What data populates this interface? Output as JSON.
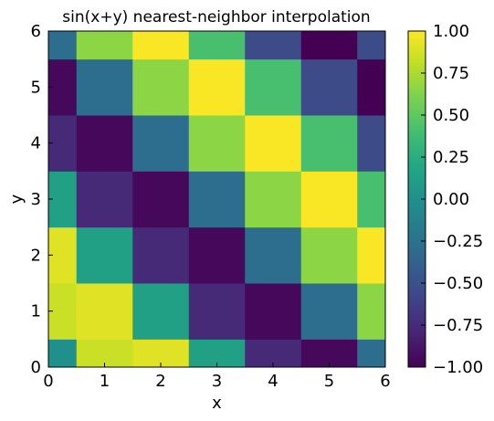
{
  "chart_data": {
    "type": "heatmap",
    "title": "sin(x+y) nearest-neighbor interpolation",
    "xlabel": "x",
    "ylabel": "y",
    "xlim": [
      0,
      6
    ],
    "ylim": [
      0,
      6
    ],
    "x_centers": [
      0,
      1,
      2,
      3,
      4,
      5,
      6
    ],
    "y_centers": [
      0,
      1,
      2,
      3,
      4,
      5,
      6
    ],
    "x_ticks": [
      "0",
      "1",
      "2",
      "3",
      "4",
      "5",
      "6"
    ],
    "y_ticks": [
      "0",
      "1",
      "2",
      "3",
      "4",
      "5",
      "6"
    ],
    "values": [
      [
        0.0,
        0.841,
        0.909,
        0.141,
        -0.757,
        -0.959,
        -0.279
      ],
      [
        0.841,
        0.909,
        0.141,
        -0.757,
        -0.959,
        -0.279,
        0.657
      ],
      [
        0.909,
        0.141,
        -0.757,
        -0.959,
        -0.279,
        0.657,
        0.989
      ],
      [
        0.141,
        -0.757,
        -0.959,
        -0.279,
        0.657,
        0.989,
        0.412
      ],
      [
        -0.757,
        -0.959,
        -0.279,
        0.657,
        0.989,
        0.412,
        -0.544
      ],
      [
        -0.959,
        -0.279,
        0.657,
        0.989,
        0.412,
        -0.544,
        -1.0
      ],
      [
        -0.279,
        0.657,
        0.989,
        0.412,
        -0.544,
        -1.0,
        -0.537
      ]
    ],
    "colormap": "viridis",
    "colorbar": {
      "min": -1.0,
      "max": 1.0,
      "ticks": [
        -1.0,
        -0.75,
        -0.5,
        -0.25,
        0.0,
        0.25,
        0.5,
        0.75,
        1.0
      ],
      "tick_labels": [
        "−1.00",
        "−0.75",
        "−0.50",
        "−0.25",
        "0.00",
        "0.25",
        "0.50",
        "0.75",
        "1.00"
      ]
    },
    "grid": false
  }
}
